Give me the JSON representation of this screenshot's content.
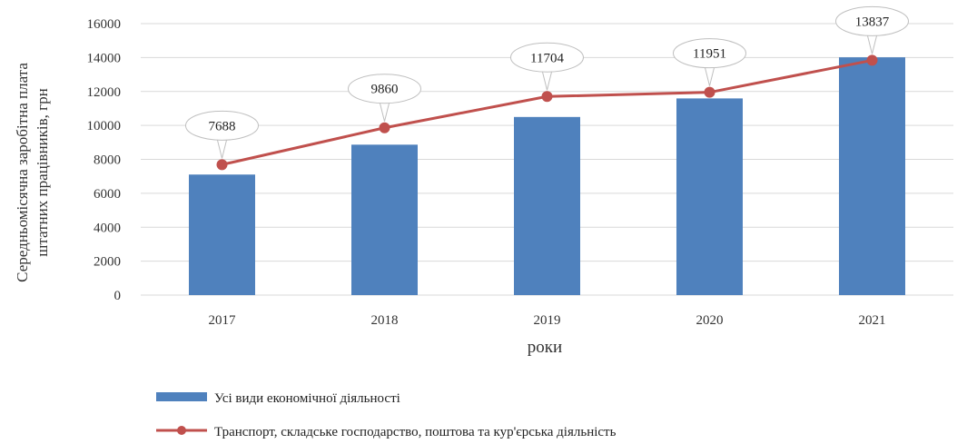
{
  "chart_data": {
    "type": "bar+line",
    "categories": [
      "2017",
      "2018",
      "2019",
      "2020",
      "2021"
    ],
    "series": [
      {
        "name": "Усі види економічної діяльності",
        "type": "bar",
        "color": "#4F81BD",
        "values": [
          7104,
          8865,
          10497,
          11591,
          14014
        ]
      },
      {
        "name": "Транспорт, складське господарство, поштова та кур'єрська діяльність",
        "type": "line",
        "color": "#C0504D",
        "values": [
          7688,
          9860,
          11704,
          11951,
          13837
        ],
        "data_labels": [
          "7688",
          "9860",
          "11704",
          "11951",
          "13837"
        ]
      }
    ],
    "xlabel": "роки",
    "ylabel": [
      "Середньомісячна заробітна плата",
      "штатних працівників, грн"
    ],
    "ylim": [
      0,
      16000
    ],
    "yticks": [
      "0",
      "2000",
      "4000",
      "6000",
      "8000",
      "10000",
      "12000",
      "14000",
      "16000"
    ],
    "grid": true,
    "legend_position": "bottom"
  }
}
